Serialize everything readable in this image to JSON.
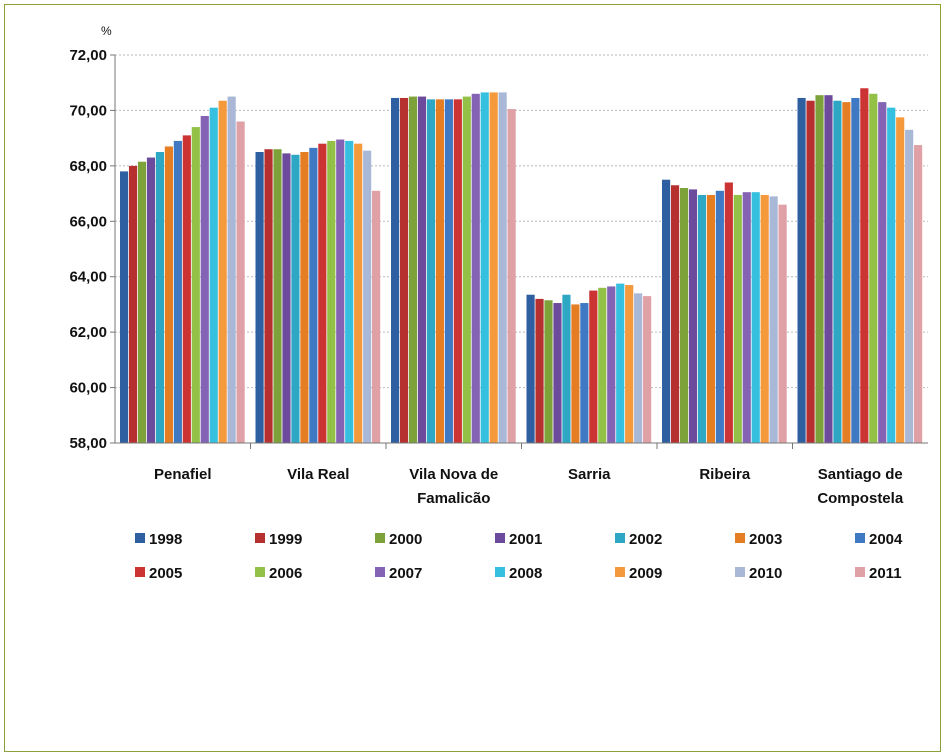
{
  "chart_data": {
    "type": "bar",
    "ylabel": "%",
    "ylim": [
      58,
      72
    ],
    "yticks": [
      "58,00",
      "60,00",
      "62,00",
      "64,00",
      "66,00",
      "68,00",
      "70,00",
      "72,00"
    ],
    "grid": true,
    "legend_position": "bottom",
    "categories": [
      [
        "Penafiel"
      ],
      [
        "Vila Real"
      ],
      [
        "Vila Nova de",
        "Famalicão"
      ],
      [
        "Sarria"
      ],
      [
        "Ribeira"
      ],
      [
        "Santiago de",
        "Compostela"
      ]
    ],
    "series": [
      {
        "name": "1998",
        "color": "#2e5fa1",
        "values": [
          67.8,
          68.5,
          70.45,
          63.35,
          67.5,
          70.45
        ]
      },
      {
        "name": "1999",
        "color": "#b5302e",
        "values": [
          68.0,
          68.6,
          70.45,
          63.2,
          67.3,
          70.35
        ]
      },
      {
        "name": "2000",
        "color": "#7da23a",
        "values": [
          68.15,
          68.6,
          70.5,
          63.15,
          67.2,
          70.55
        ]
      },
      {
        "name": "2001",
        "color": "#6c4a9c",
        "values": [
          68.3,
          68.45,
          70.5,
          63.05,
          67.15,
          70.55
        ]
      },
      {
        "name": "2002",
        "color": "#2ea7c5",
        "values": [
          68.5,
          68.4,
          70.4,
          63.35,
          66.95,
          70.35
        ]
      },
      {
        "name": "2003",
        "color": "#e57e22",
        "values": [
          68.7,
          68.5,
          70.4,
          63.0,
          66.95,
          70.3
        ]
      },
      {
        "name": "2004",
        "color": "#3f78c3",
        "values": [
          68.9,
          68.65,
          70.4,
          63.05,
          67.1,
          70.45
        ]
      },
      {
        "name": "2005",
        "color": "#cc3333",
        "values": [
          69.1,
          68.8,
          70.4,
          63.5,
          67.4,
          70.8
        ]
      },
      {
        "name": "2006",
        "color": "#93c047",
        "values": [
          69.4,
          68.9,
          70.5,
          63.6,
          66.95,
          70.6
        ]
      },
      {
        "name": "2007",
        "color": "#8463b4",
        "values": [
          69.8,
          68.95,
          70.6,
          63.65,
          67.05,
          70.3
        ]
      },
      {
        "name": "2008",
        "color": "#35c0df",
        "values": [
          70.1,
          68.9,
          70.65,
          63.75,
          67.05,
          70.1
        ]
      },
      {
        "name": "2009",
        "color": "#f59a3c",
        "values": [
          70.35,
          68.8,
          70.65,
          63.7,
          66.95,
          69.75
        ]
      },
      {
        "name": "2010",
        "color": "#aab8d8",
        "values": [
          70.5,
          68.55,
          70.65,
          63.4,
          66.9,
          69.3
        ]
      },
      {
        "name": "2011",
        "color": "#dfa0a6",
        "values": [
          69.6,
          67.1,
          70.05,
          63.3,
          66.6,
          68.75
        ]
      }
    ]
  }
}
